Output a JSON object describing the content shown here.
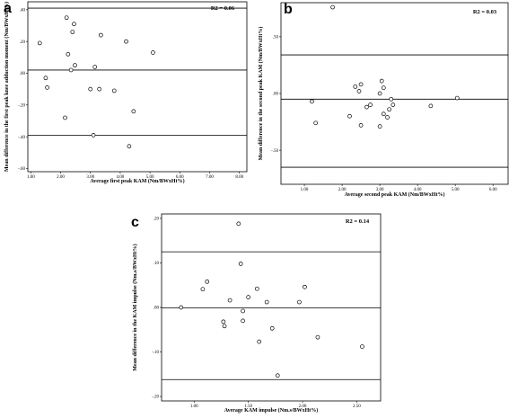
{
  "chart_data": [
    {
      "type": "scatter",
      "panel_label": "a",
      "title": "",
      "r2_label": "R2 = 0.06",
      "xlabel": "Average first peak KAM (Nm/BWxHt%)",
      "ylabel": "Mean difference in the first peak knee adduction moment (Nm/BWxHt%)",
      "xlim": [
        0.9,
        8.25
      ],
      "ylim": [
        -0.62,
        0.45
      ],
      "xticks": [
        {
          "v": 1,
          "label": "1.00"
        },
        {
          "v": 2,
          "label": "2.00"
        },
        {
          "v": 3,
          "label": "3.00"
        },
        {
          "v": 4,
          "label": "4.00"
        },
        {
          "v": 5,
          "label": "5.00"
        },
        {
          "v": 6,
          "label": "6.00"
        },
        {
          "v": 7,
          "label": "7.00"
        },
        {
          "v": 8,
          "label": "8.00"
        }
      ],
      "yticks": [
        {
          "v": 0.4,
          "label": ".40"
        },
        {
          "v": 0.2,
          "label": ".20"
        },
        {
          "v": 0.0,
          "label": ".00"
        },
        {
          "v": -0.2,
          "label": "-.20"
        },
        {
          "v": -0.4,
          "label": "-.40"
        },
        {
          "v": -0.6,
          "label": "-.60"
        }
      ],
      "ref_lines": [
        0.41,
        0.02,
        -0.39
      ],
      "grid": false,
      "legend": "none",
      "points": [
        {
          "x": 1.3,
          "y": 0.19
        },
        {
          "x": 1.5,
          "y": -0.03
        },
        {
          "x": 1.55,
          "y": -0.09
        },
        {
          "x": 2.15,
          "y": -0.28
        },
        {
          "x": 2.2,
          "y": 0.35
        },
        {
          "x": 2.25,
          "y": 0.12
        },
        {
          "x": 2.35,
          "y": 0.02
        },
        {
          "x": 2.4,
          "y": 0.26
        },
        {
          "x": 2.45,
          "y": 0.31
        },
        {
          "x": 2.48,
          "y": 0.05
        },
        {
          "x": 3.0,
          "y": -0.1
        },
        {
          "x": 3.1,
          "y": -0.39
        },
        {
          "x": 3.15,
          "y": 0.04
        },
        {
          "x": 3.3,
          "y": -0.1
        },
        {
          "x": 3.35,
          "y": 0.24
        },
        {
          "x": 3.8,
          "y": -0.11
        },
        {
          "x": 4.2,
          "y": 0.2
        },
        {
          "x": 4.3,
          "y": -0.46
        },
        {
          "x": 4.45,
          "y": -0.24
        },
        {
          "x": 5.1,
          "y": 0.13
        }
      ]
    },
    {
      "type": "scatter",
      "panel_label": "b",
      "title": "",
      "r2_label": "R2 = 0.03",
      "xlabel": "Average second peak KAM (Nm/BWxHt%)",
      "ylabel": "Mean difference in the second peak KAM (Nm/BWxHt%)",
      "xlim": [
        0.38,
        6.4
      ],
      "ylim": [
        -0.8,
        0.8
      ],
      "xticks": [
        {
          "v": 1,
          "label": "1.00"
        },
        {
          "v": 2,
          "label": "2.00"
        },
        {
          "v": 3,
          "label": "3.00"
        },
        {
          "v": 4,
          "label": "4.00"
        },
        {
          "v": 5,
          "label": "5.00"
        },
        {
          "v": 6,
          "label": "6.00"
        }
      ],
      "yticks": [
        {
          "v": 0.5,
          "label": ".50"
        },
        {
          "v": 0.0,
          "label": ".00"
        },
        {
          "v": -0.5,
          "label": "-.50"
        }
      ],
      "ref_lines": [
        0.34,
        -0.05,
        -0.65
      ],
      "grid": false,
      "legend": "none",
      "points": [
        {
          "x": 1.75,
          "y": 0.76
        },
        {
          "x": 1.2,
          "y": -0.07
        },
        {
          "x": 1.3,
          "y": -0.26
        },
        {
          "x": 2.2,
          "y": -0.2
        },
        {
          "x": 2.35,
          "y": 0.06
        },
        {
          "x": 2.45,
          "y": 0.02
        },
        {
          "x": 2.5,
          "y": 0.08
        },
        {
          "x": 2.5,
          "y": -0.28
        },
        {
          "x": 2.65,
          "y": -0.12
        },
        {
          "x": 2.75,
          "y": -0.1
        },
        {
          "x": 3.0,
          "y": -0.29
        },
        {
          "x": 3.0,
          "y": 0.0
        },
        {
          "x": 3.05,
          "y": 0.11
        },
        {
          "x": 3.1,
          "y": 0.05
        },
        {
          "x": 3.1,
          "y": -0.18
        },
        {
          "x": 3.2,
          "y": -0.21
        },
        {
          "x": 3.25,
          "y": -0.14
        },
        {
          "x": 3.3,
          "y": -0.05
        },
        {
          "x": 3.35,
          "y": -0.1
        },
        {
          "x": 4.35,
          "y": -0.11
        },
        {
          "x": 5.05,
          "y": -0.04
        }
      ]
    },
    {
      "type": "scatter",
      "panel_label": "c",
      "title": "",
      "r2_label": "R2 = 0.14",
      "xlabel": "Average KAM impulse (Nm.s/BWxHt%)",
      "ylabel": "Mean difference in the KAM impulse (Nm.s/BWxHt%)",
      "xlim": [
        0.7,
        2.72
      ],
      "ylim": [
        -0.21,
        0.21
      ],
      "xticks": [
        {
          "v": 1.0,
          "label": "1.00"
        },
        {
          "v": 1.5,
          "label": "1.50"
        },
        {
          "v": 2.0,
          "label": "2.00"
        },
        {
          "v": 2.5,
          "label": "2.50"
        }
      ],
      "yticks": [
        {
          "v": 0.2,
          "label": ".20"
        },
        {
          "v": 0.1,
          "label": ".10"
        },
        {
          "v": 0.0,
          "label": ".00"
        },
        {
          "v": -0.1,
          "label": "-.10"
        },
        {
          "v": -0.2,
          "label": "-.20"
        }
      ],
      "ref_lines": [
        0.125,
        -0.001,
        -0.162
      ],
      "grid": false,
      "legend": "none",
      "points": [
        {
          "x": 0.88,
          "y": 0.0
        },
        {
          "x": 1.08,
          "y": 0.041
        },
        {
          "x": 1.12,
          "y": 0.058
        },
        {
          "x": 1.27,
          "y": -0.032
        },
        {
          "x": 1.28,
          "y": -0.042
        },
        {
          "x": 1.33,
          "y": 0.016
        },
        {
          "x": 1.41,
          "y": 0.188
        },
        {
          "x": 1.43,
          "y": 0.098
        },
        {
          "x": 1.45,
          "y": -0.008
        },
        {
          "x": 1.45,
          "y": -0.03
        },
        {
          "x": 1.5,
          "y": 0.023
        },
        {
          "x": 1.58,
          "y": 0.042
        },
        {
          "x": 1.6,
          "y": -0.077
        },
        {
          "x": 1.67,
          "y": 0.012
        },
        {
          "x": 1.72,
          "y": -0.047
        },
        {
          "x": 1.77,
          "y": -0.153
        },
        {
          "x": 1.97,
          "y": 0.012
        },
        {
          "x": 2.02,
          "y": 0.046
        },
        {
          "x": 2.14,
          "y": -0.067
        },
        {
          "x": 2.55,
          "y": -0.088
        }
      ]
    }
  ]
}
